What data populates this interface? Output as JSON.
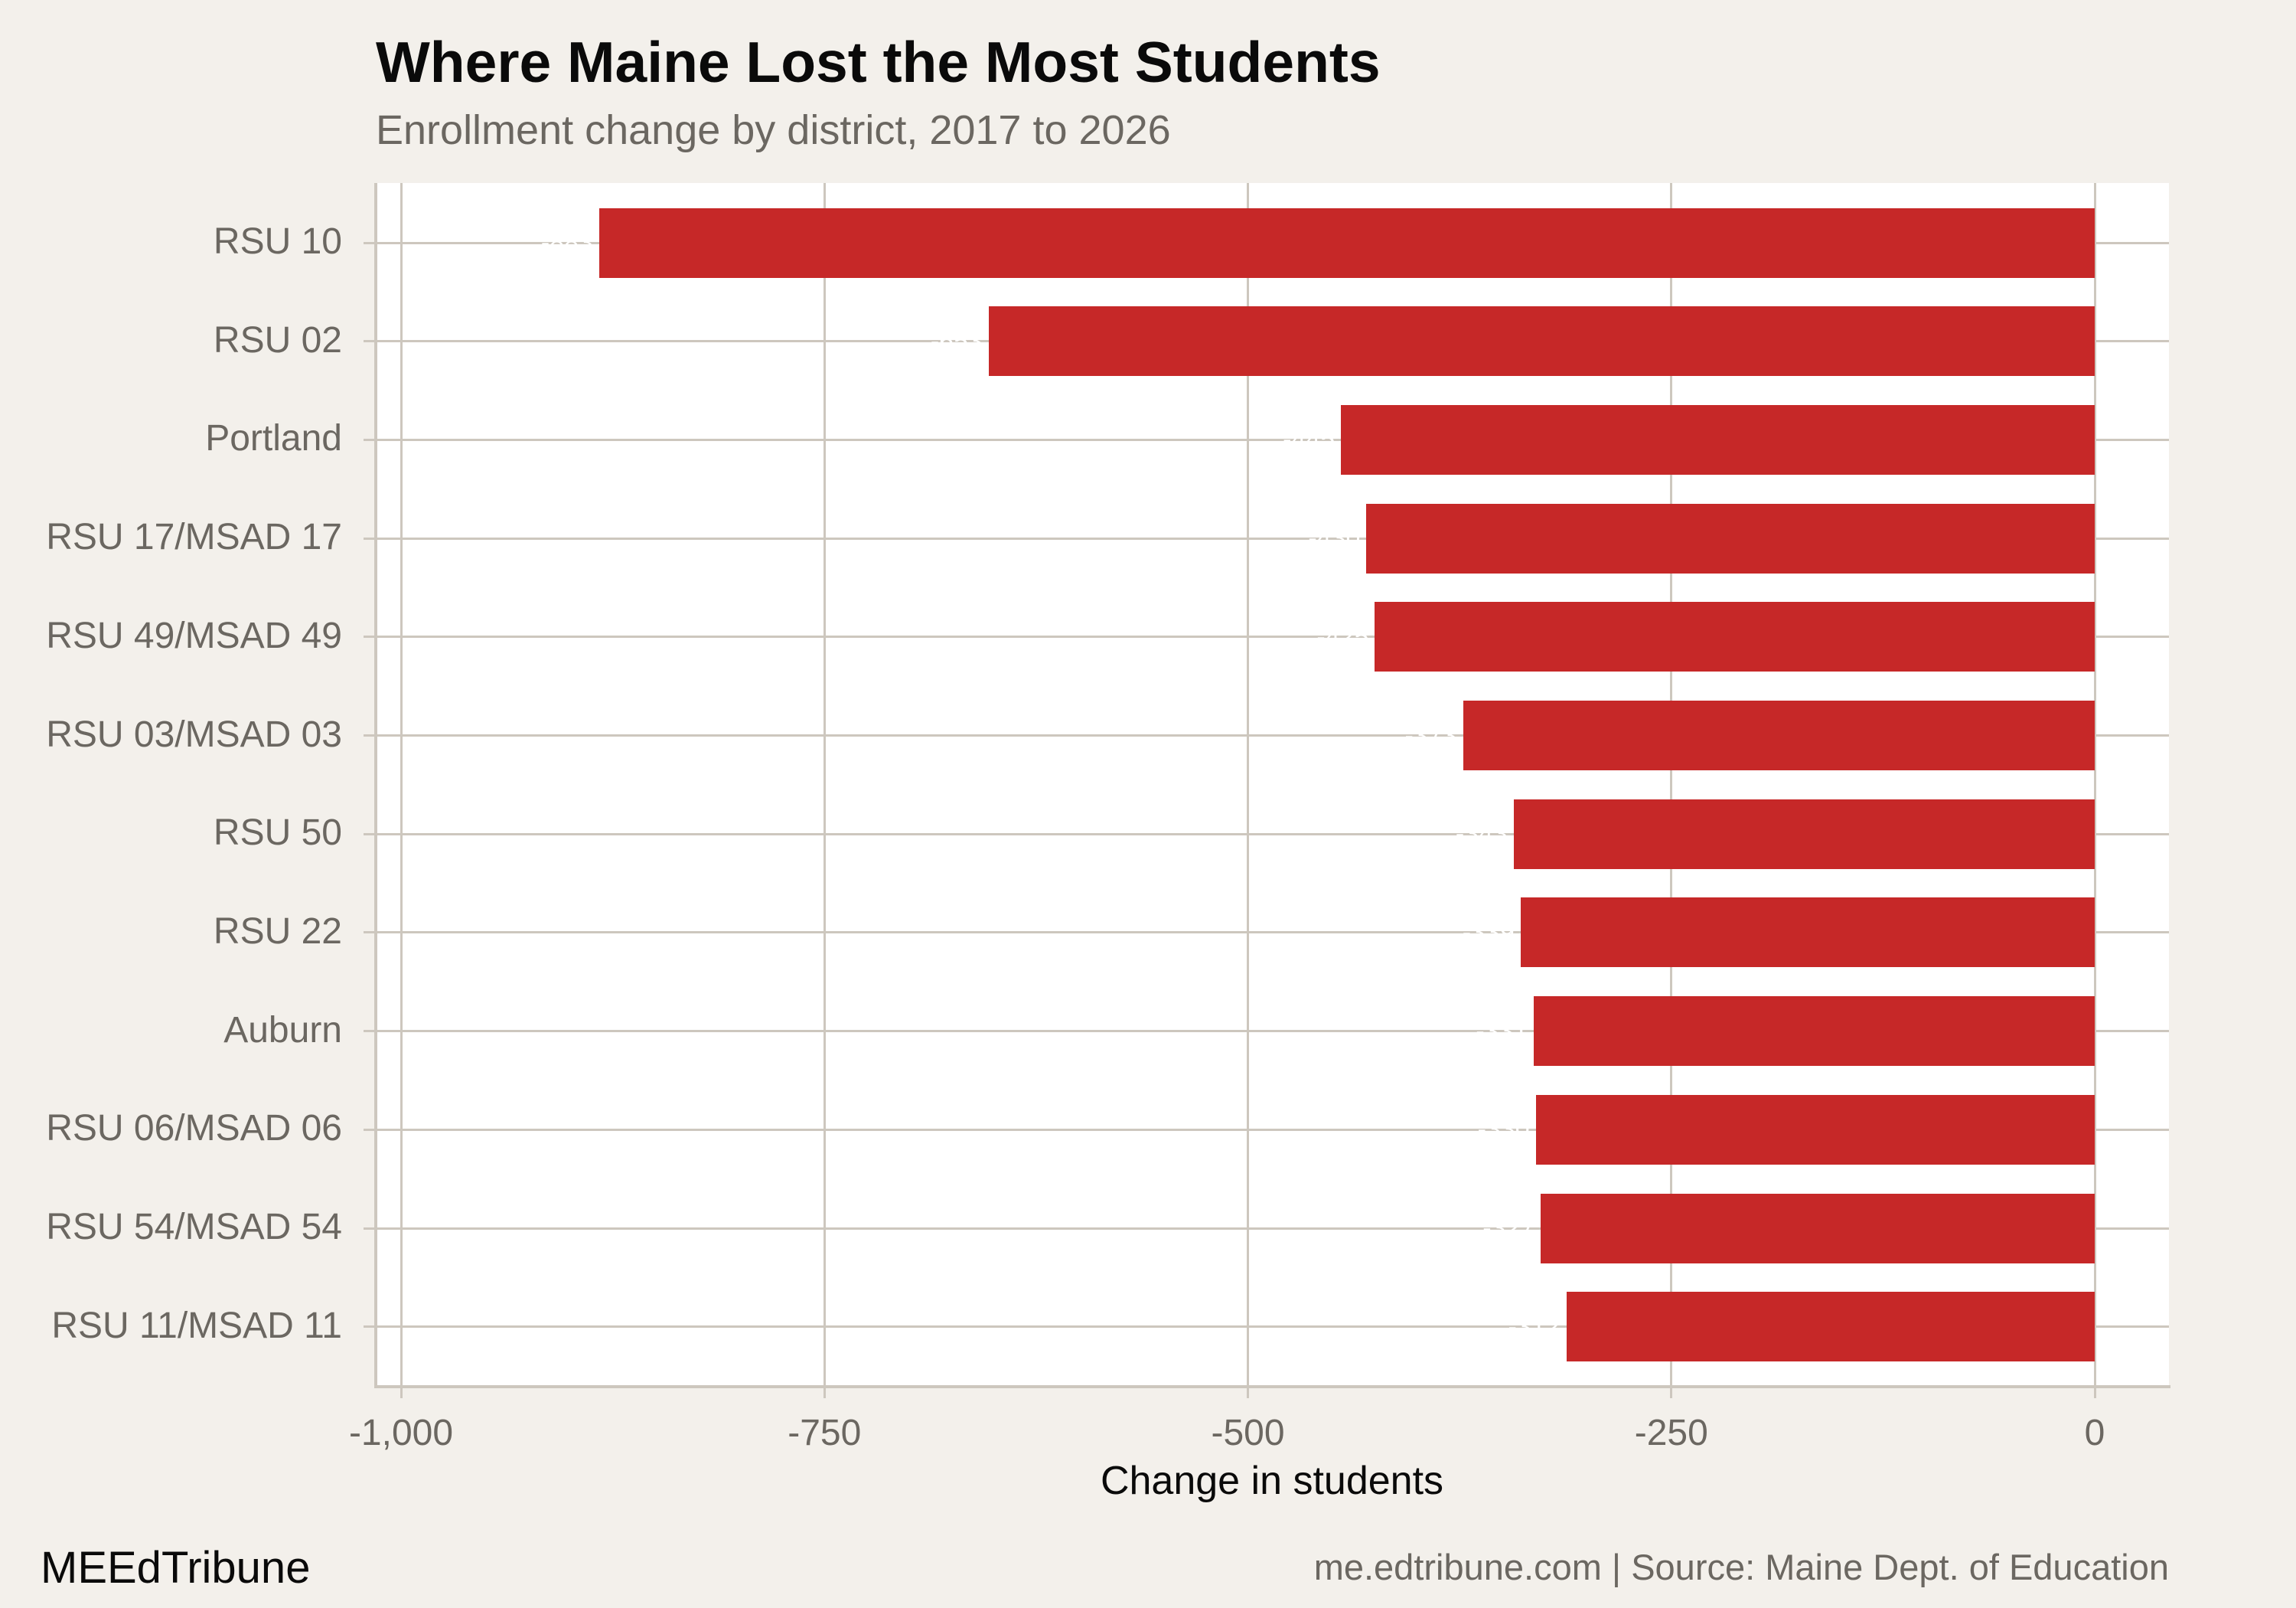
{
  "header": {
    "title": "Where Maine Lost the Most Students",
    "subtitle": "Enrollment change by district, 2017 to 2026"
  },
  "axis": {
    "x_title": "Change in students",
    "x_ticks": [
      {
        "value": -1000,
        "label": "-1,000"
      },
      {
        "value": -750,
        "label": "-750"
      },
      {
        "value": -500,
        "label": "-500"
      },
      {
        "value": -250,
        "label": "-250"
      },
      {
        "value": 0,
        "label": "0"
      }
    ]
  },
  "footer": {
    "brand": "MEEdTribune",
    "source": "me.edtribune.com | Source: Maine Dept. of Education"
  },
  "colors": {
    "bar": "#c62828",
    "background": "#f3f0eb",
    "panel": "#ffffff",
    "grid": "#cdc7be",
    "muted_text": "#6b6761",
    "title_text": "#0a0a0a"
  },
  "chart_data": {
    "type": "bar",
    "orientation": "horizontal",
    "title": "Where Maine Lost the Most Students",
    "subtitle": "Enrollment change by district, 2017 to 2026",
    "xlabel": "Change in students",
    "ylabel": "",
    "xlim": [
      -1015,
      44
    ],
    "x_ticks": [
      -1000,
      -750,
      -500,
      -250,
      0
    ],
    "grid": true,
    "legend": null,
    "categories": [
      "RSU 10",
      "RSU 02",
      "Portland",
      "RSU 17/MSAD 17",
      "RSU 49/MSAD 49",
      "RSU 03/MSAD 03",
      "RSU 50",
      "RSU 22",
      "Auburn",
      "RSU 06/MSAD 06",
      "RSU 54/MSAD 54",
      "RSU 11/MSAD 11"
    ],
    "values": [
      -883,
      -653,
      -445,
      -430,
      -425,
      -373,
      -343,
      -339,
      -331,
      -330,
      -327,
      -312
    ],
    "value_labels": [
      "-883",
      "-653",
      "-445",
      "-430",
      "-425",
      "-373",
      "-343",
      "-339",
      "-331",
      "-330",
      "-327",
      "-312"
    ],
    "caption": "me.edtribune.com | Source: Maine Dept. of Education",
    "brand": "MEEdTribune"
  }
}
